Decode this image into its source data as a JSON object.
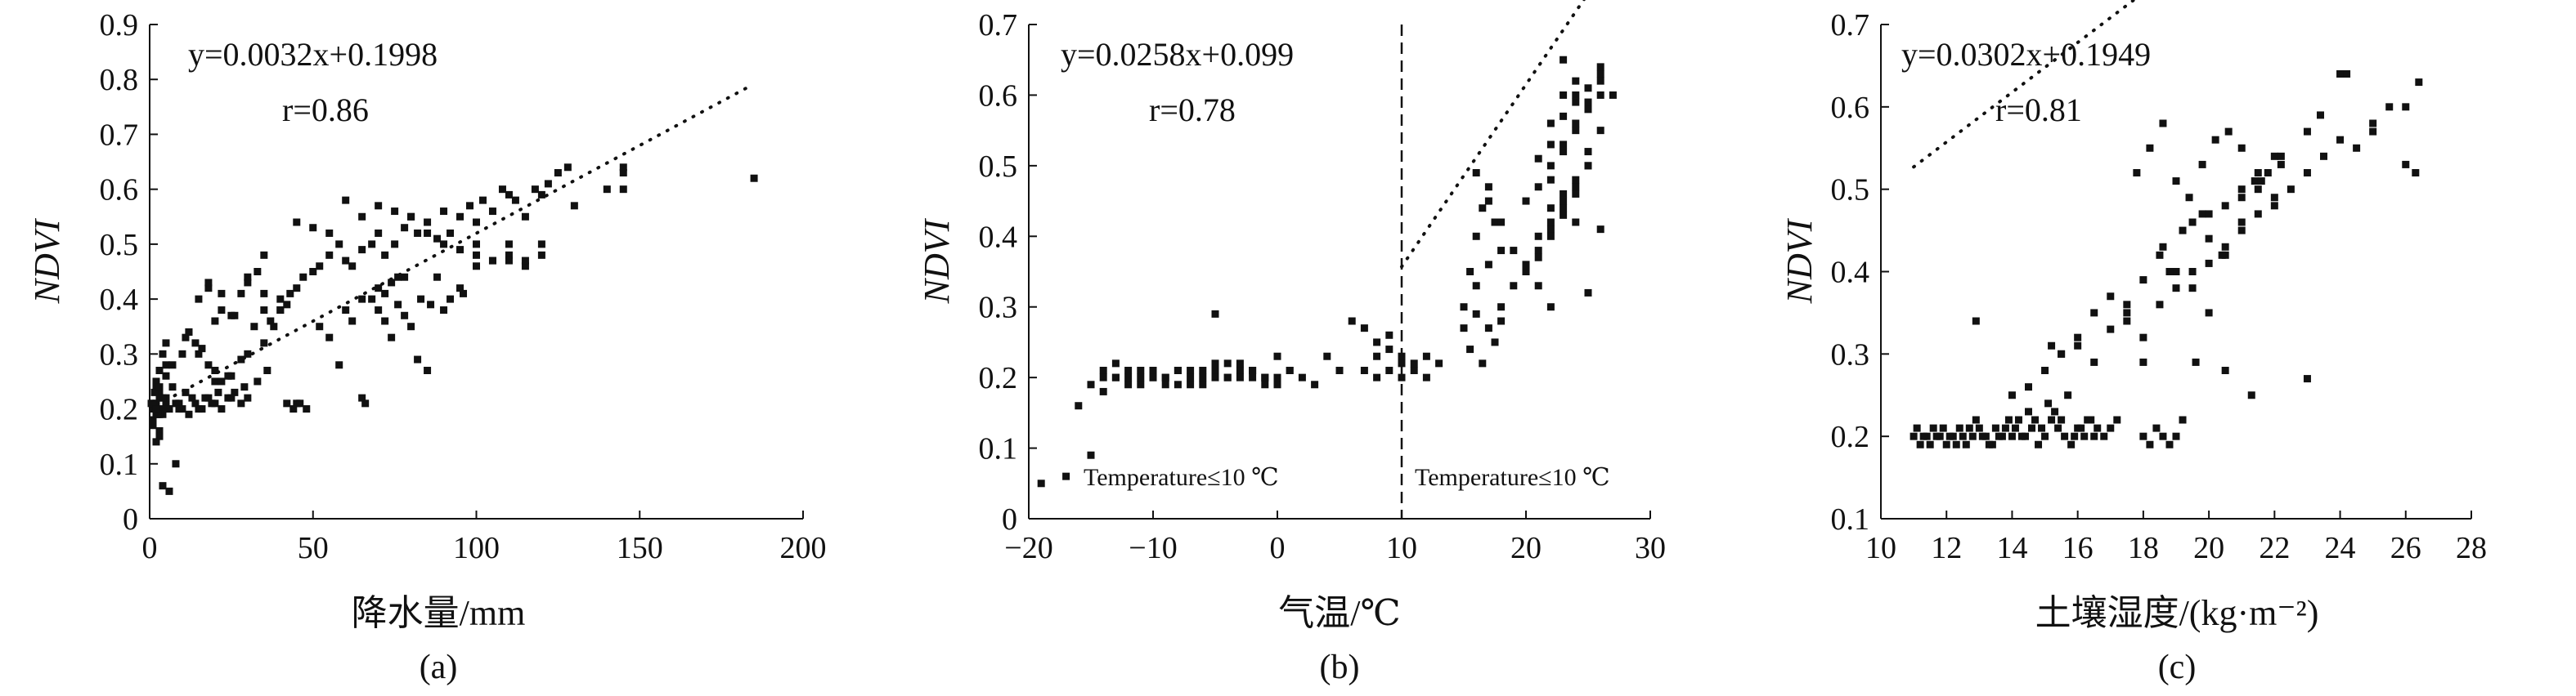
{
  "chart_data": [
    {
      "type": "scatter",
      "caption": "(a)",
      "xlabel": "降水量/mm",
      "ylabel": "NDVI",
      "xlim": [
        0,
        200
      ],
      "ylim": [
        0,
        0.9
      ],
      "x_ticks": [
        "0",
        "50",
        "100",
        "150",
        "200"
      ],
      "y_ticks": [
        "0",
        "0.1",
        "0.2",
        "0.3",
        "0.4",
        "0.5",
        "0.6",
        "0.7",
        "0.8",
        "0.9"
      ],
      "annotations": {
        "equation": "y=0.0032x+0.1998",
        "r": "r=0.86"
      },
      "trendline": {
        "slope": 0.0032,
        "intercept": 0.1998,
        "x_range": [
          5,
          183
        ]
      },
      "x": [
        1,
        2,
        2,
        3,
        1,
        2,
        4,
        5,
        3,
        6,
        2,
        1,
        3,
        4,
        5,
        2,
        1,
        3,
        6,
        8,
        10,
        12,
        14,
        16,
        18,
        20,
        22,
        24,
        26,
        28,
        30,
        3,
        5,
        7,
        9,
        11,
        13,
        15,
        17,
        19,
        21,
        25,
        29,
        33,
        36,
        2,
        4,
        6,
        1,
        3,
        5,
        0.5,
        1.5,
        2.5,
        4,
        5,
        7,
        8,
        9,
        11,
        12,
        15,
        18,
        20,
        22,
        26,
        30,
        35,
        40,
        2,
        3,
        4,
        20,
        25,
        28,
        30,
        32,
        35,
        37,
        40,
        43,
        45,
        47,
        50,
        52,
        55,
        58,
        60,
        62,
        65,
        68,
        70,
        72,
        75,
        78,
        80,
        82,
        85,
        88,
        90,
        92,
        95,
        98,
        100,
        102,
        105,
        108,
        110,
        112,
        115,
        118,
        120,
        122,
        125,
        128,
        145,
        145,
        185,
        45,
        50,
        55,
        60,
        65,
        70,
        75,
        80,
        85,
        90,
        95,
        100,
        105,
        110,
        115,
        120,
        60,
        65,
        70,
        72,
        74,
        76,
        78,
        80,
        83,
        86,
        90,
        95,
        100,
        105,
        110,
        115,
        45,
        48,
        52,
        55,
        58,
        62,
        66,
        68,
        70,
        72,
        74,
        76,
        78,
        82,
        85,
        88,
        92,
        96,
        30,
        33,
        35,
        38,
        40,
        42,
        44,
        46,
        15,
        18,
        22,
        25,
        28,
        10,
        12,
        14,
        16,
        18,
        20,
        22,
        24,
        35,
        42,
        65,
        100,
        110,
        120,
        130,
        140,
        145
      ],
      "y": [
        0.2,
        0.19,
        0.21,
        0.22,
        0.18,
        0.2,
        0.19,
        0.21,
        0.23,
        0.2,
        0.24,
        0.17,
        0.16,
        0.2,
        0.22,
        0.25,
        0.21,
        0.19,
        0.2,
        0.21,
        0.2,
        0.19,
        0.21,
        0.2,
        0.22,
        0.21,
        0.2,
        0.22,
        0.23,
        0.21,
        0.22,
        0.15,
        0.26,
        0.24,
        0.21,
        0.23,
        0.22,
        0.2,
        0.22,
        0.21,
        0.23,
        0.22,
        0.24,
        0.25,
        0.27,
        0.14,
        0.06,
        0.05,
        0.18,
        0.27,
        0.28,
        0.21,
        0.23,
        0.19,
        0.3,
        0.32,
        0.28,
        0.1,
        0.2,
        0.33,
        0.34,
        0.3,
        0.42,
        0.36,
        0.41,
        0.37,
        0.44,
        0.41,
        0.38,
        0.2,
        0.24,
        0.22,
        0.25,
        0.26,
        0.29,
        0.3,
        0.35,
        0.38,
        0.36,
        0.4,
        0.41,
        0.42,
        0.44,
        0.45,
        0.46,
        0.48,
        0.5,
        0.47,
        0.46,
        0.49,
        0.5,
        0.52,
        0.48,
        0.5,
        0.53,
        0.55,
        0.52,
        0.54,
        0.51,
        0.56,
        0.52,
        0.55,
        0.57,
        0.54,
        0.58,
        0.56,
        0.6,
        0.59,
        0.58,
        0.55,
        0.6,
        0.59,
        0.61,
        0.63,
        0.64,
        0.6,
        0.63,
        0.62,
        0.54,
        0.53,
        0.52,
        0.58,
        0.55,
        0.57,
        0.56,
        0.55,
        0.52,
        0.5,
        0.49,
        0.48,
        0.47,
        0.5,
        0.46,
        0.48,
        0.38,
        0.4,
        0.42,
        0.41,
        0.43,
        0.44,
        0.37,
        0.35,
        0.4,
        0.39,
        0.38,
        0.42,
        0.46,
        0.47,
        0.48,
        0.47,
        0.21,
        0.2,
        0.35,
        0.33,
        0.28,
        0.36,
        0.21,
        0.4,
        0.38,
        0.36,
        0.33,
        0.39,
        0.44,
        0.29,
        0.27,
        0.44,
        0.4,
        0.41,
        0.43,
        0.45,
        0.48,
        0.35,
        0.38,
        0.39,
        0.2,
        0.21,
        0.4,
        0.43,
        0.38,
        0.37,
        0.41,
        0.3,
        0.34,
        0.32,
        0.31,
        0.28,
        0.27,
        0.25,
        0.26,
        0.32,
        0.21,
        0.22,
        0.5,
        0.47,
        0.5,
        0.57,
        0.6,
        0.64
      ]
    },
    {
      "type": "scatter",
      "caption": "(b)",
      "xlabel": "气温/℃",
      "ylabel": "NDVI",
      "xlim": [
        -20,
        30
      ],
      "ylim": [
        0,
        0.7
      ],
      "x_ticks": [
        "−20",
        "−10",
        "0",
        "10",
        "20",
        "30"
      ],
      "y_ticks": [
        "0",
        "0.1",
        "0.2",
        "0.3",
        "0.4",
        "0.5",
        "0.6",
        "0.7"
      ],
      "annotations": {
        "equation": "y=0.0258x+0.099",
        "r": "r=0.78",
        "left_region": "Temperature≤10 ℃",
        "right_region": "Temperature≤10 ℃"
      },
      "vline_x": 10,
      "trendline": {
        "slope": 0.0258,
        "intercept": 0.099,
        "x_range": [
          10,
          27
        ]
      },
      "x": [
        -19,
        -17,
        -16,
        -15,
        -14,
        -13,
        -12,
        -11,
        -10,
        -9,
        -8,
        -7,
        -6,
        -5,
        -4,
        -3,
        -2,
        -1,
        0,
        1,
        2,
        3,
        -15,
        -14,
        -13,
        -12,
        -11,
        -10,
        -9,
        -8,
        -7,
        -6,
        -5,
        -4,
        -3,
        -2,
        -1,
        0,
        1,
        -14,
        -13,
        -12,
        -11,
        -10,
        -9,
        -8,
        -7,
        -6,
        -5,
        -4,
        -3,
        -2,
        -1,
        0,
        -5,
        5,
        6,
        7,
        8,
        9,
        10,
        11,
        12,
        13,
        8,
        9,
        10,
        11,
        7,
        8,
        9,
        10,
        12,
        4,
        15,
        15.5,
        16,
        16.5,
        17,
        17.5,
        18,
        15,
        16,
        17,
        18,
        15.5,
        16.5,
        17.5,
        16,
        17,
        18,
        16,
        17,
        18,
        19,
        20,
        21,
        22,
        23,
        24,
        25,
        26,
        27,
        20,
        21,
        22,
        23,
        24,
        25,
        26,
        21,
        22,
        23,
        24,
        25,
        26,
        22,
        23,
        24,
        25,
        26,
        20,
        21,
        22,
        23,
        24,
        25,
        19,
        20,
        21,
        22,
        23,
        24,
        25,
        22,
        23,
        24,
        25,
        26,
        22,
        23,
        24,
        21,
        26,
        25,
        23,
        24,
        22
      ],
      "y": [
        0.05,
        0.06,
        0.16,
        0.09,
        0.21,
        0.2,
        0.19,
        0.2,
        0.21,
        0.2,
        0.19,
        0.21,
        0.2,
        0.22,
        0.2,
        0.21,
        0.2,
        0.19,
        0.2,
        0.21,
        0.2,
        0.19,
        0.19,
        0.2,
        0.22,
        0.2,
        0.21,
        0.2,
        0.19,
        0.21,
        0.2,
        0.19,
        0.21,
        0.2,
        0.22,
        0.21,
        0.2,
        0.23,
        0.21,
        0.18,
        0.2,
        0.21,
        0.19,
        0.2,
        0.2,
        0.21,
        0.19,
        0.21,
        0.2,
        0.22,
        0.2,
        0.21,
        0.2,
        0.19,
        0.29,
        0.21,
        0.28,
        0.27,
        0.25,
        0.24,
        0.22,
        0.21,
        0.2,
        0.22,
        0.23,
        0.26,
        0.23,
        0.22,
        0.21,
        0.2,
        0.21,
        0.2,
        0.23,
        0.23,
        0.3,
        0.35,
        0.4,
        0.44,
        0.47,
        0.42,
        0.38,
        0.27,
        0.33,
        0.36,
        0.3,
        0.24,
        0.22,
        0.25,
        0.29,
        0.27,
        0.28,
        0.49,
        0.45,
        0.42,
        0.38,
        0.35,
        0.4,
        0.42,
        0.45,
        0.48,
        0.5,
        0.55,
        0.6,
        0.45,
        0.47,
        0.5,
        0.52,
        0.55,
        0.58,
        0.6,
        0.51,
        0.56,
        0.6,
        0.62,
        0.58,
        0.63,
        0.53,
        0.57,
        0.59,
        0.61,
        0.64,
        0.36,
        0.38,
        0.41,
        0.43,
        0.46,
        0.5,
        0.33,
        0.35,
        0.37,
        0.4,
        0.44,
        0.47,
        0.52,
        0.48,
        0.53,
        0.56,
        0.59,
        0.62,
        0.44,
        0.46,
        0.42,
        0.33,
        0.41,
        0.32,
        0.65,
        0.6,
        0.3
      ]
    },
    {
      "type": "scatter",
      "caption": "(c)",
      "xlabel": "土壤湿度/(kg·m⁻²)",
      "ylabel": "NDVI",
      "xlim": [
        10,
        28
      ],
      "ylim": [
        0.1,
        0.7
      ],
      "x_ticks": [
        "10",
        "12",
        "14",
        "16",
        "18",
        "20",
        "22",
        "24",
        "26",
        "28"
      ],
      "y_ticks": [
        "0.1",
        "0.2",
        "0.3",
        "0.4",
        "0.5",
        "0.6",
        "0.7"
      ],
      "annotations": {
        "equation": "y=0.0302x+0.1949",
        "r": "r=0.81"
      },
      "trendline": {
        "slope": 0.0302,
        "intercept": 0.1949,
        "x_range": [
          11,
          26.4
        ]
      },
      "x": [
        11,
        11.2,
        11.4,
        11.6,
        11.8,
        12,
        12.2,
        12.4,
        12.6,
        12.8,
        13,
        13.2,
        13.4,
        13.6,
        13.8,
        14,
        14.2,
        14.4,
        14.6,
        14.8,
        15,
        15.2,
        15.4,
        15.6,
        15.8,
        16,
        16.2,
        16.4,
        16.6,
        16.8,
        17,
        17.2,
        11.1,
        11.3,
        11.5,
        11.7,
        11.9,
        12.1,
        12.3,
        12.5,
        12.7,
        12.9,
        13.1,
        13.3,
        13.5,
        13.7,
        13.9,
        14.1,
        14.3,
        14.5,
        14.7,
        14.9,
        15.1,
        15.3,
        15.5,
        15.7,
        15.9,
        16.1,
        16.3,
        16.5,
        18,
        18.2,
        18.4,
        18.6,
        18.8,
        19,
        19.2,
        14,
        14.5,
        15,
        15.5,
        16,
        16.5,
        17,
        17.5,
        18,
        18.5,
        19,
        19.5,
        20,
        20.5,
        21,
        21.5,
        22,
        22.5,
        23,
        23.5,
        24,
        24.5,
        25,
        25.5,
        26,
        26.4,
        15.5,
        16,
        16.5,
        17,
        17.5,
        18,
        18.5,
        19,
        19.5,
        20,
        20.5,
        21,
        21.5,
        22,
        17.8,
        18.2,
        18.6,
        19,
        19.4,
        19.8,
        20.2,
        20.6,
        21,
        21.4,
        21.8,
        22.2,
        19.5,
        20,
        20.5,
        21,
        21.5,
        22,
        18.6,
        19.2,
        19.8,
        20.4,
        21,
        21.6,
        22.2,
        23,
        23.4,
        24,
        24.2,
        25,
        26,
        26.3,
        12.9,
        15.2,
        18,
        19.6,
        20.5,
        21.3,
        23,
        17.5,
        18.8,
        20
      ],
      "y": [
        0.2,
        0.19,
        0.2,
        0.21,
        0.2,
        0.19,
        0.2,
        0.21,
        0.19,
        0.2,
        0.21,
        0.2,
        0.19,
        0.2,
        0.21,
        0.2,
        0.22,
        0.2,
        0.21,
        0.19,
        0.2,
        0.22,
        0.21,
        0.2,
        0.19,
        0.21,
        0.2,
        0.22,
        0.21,
        0.2,
        0.21,
        0.22,
        0.21,
        0.2,
        0.19,
        0.2,
        0.21,
        0.2,
        0.19,
        0.2,
        0.21,
        0.22,
        0.2,
        0.19,
        0.21,
        0.2,
        0.22,
        0.21,
        0.2,
        0.23,
        0.22,
        0.21,
        0.24,
        0.23,
        0.22,
        0.25,
        0.2,
        0.21,
        0.22,
        0.2,
        0.2,
        0.19,
        0.21,
        0.2,
        0.19,
        0.2,
        0.22,
        0.25,
        0.26,
        0.28,
        0.3,
        0.31,
        0.29,
        0.33,
        0.35,
        0.32,
        0.36,
        0.38,
        0.4,
        0.41,
        0.43,
        0.45,
        0.47,
        0.49,
        0.5,
        0.52,
        0.54,
        0.56,
        0.55,
        0.58,
        0.6,
        0.53,
        0.63,
        0.3,
        0.32,
        0.35,
        0.37,
        0.34,
        0.39,
        0.42,
        0.4,
        0.38,
        0.44,
        0.42,
        0.46,
        0.5,
        0.48,
        0.52,
        0.55,
        0.58,
        0.51,
        0.49,
        0.53,
        0.56,
        0.57,
        0.55,
        0.51,
        0.52,
        0.54,
        0.46,
        0.47,
        0.48,
        0.5,
        0.52,
        0.54,
        0.43,
        0.45,
        0.47,
        0.42,
        0.49,
        0.51,
        0.53,
        0.57,
        0.59,
        0.64,
        0.64,
        0.57,
        0.6,
        0.52,
        0.34,
        0.31,
        0.29,
        0.29,
        0.28,
        0.25,
        0.27,
        0.36,
        0.4,
        0.35
      ],
      "x_label_note": "−2 superscript"
    }
  ]
}
